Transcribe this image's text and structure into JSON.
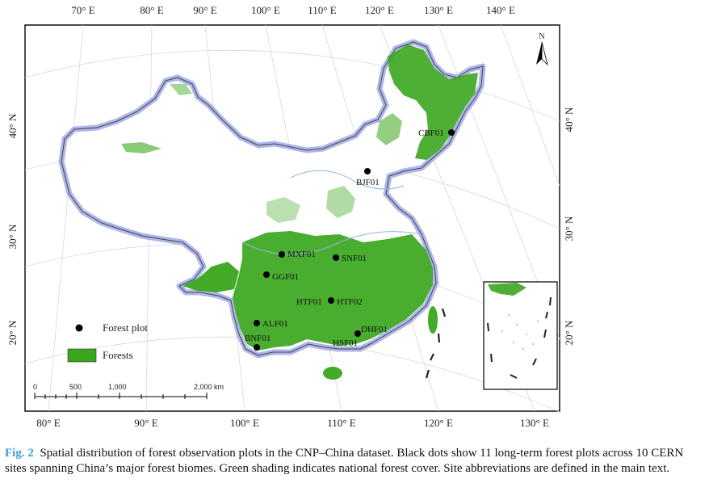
{
  "map": {
    "top_lon_labels": [
      "70° E",
      "80° E",
      "90° E",
      "100° E",
      "110° E",
      "120° E",
      "130° E",
      "140° E"
    ],
    "bottom_lon_labels": [
      "80° E",
      "90° E",
      "100° E",
      "110° E",
      "120° E",
      "130° E"
    ],
    "left_lat_labels": [
      "40° N",
      "30° N",
      "20° N"
    ],
    "right_lat_labels": [
      "40° N",
      "30° N",
      "20° N"
    ],
    "north_label": "N",
    "colors": {
      "forest": "#3aa61e",
      "border_glow": "#9aa4e6",
      "coast": "#8fb6e0",
      "frame": "#000000"
    },
    "sites": [
      {
        "id": "CBF01"
      },
      {
        "id": "BJF01"
      },
      {
        "id": "MXF01"
      },
      {
        "id": "SNF01"
      },
      {
        "id": "GGF01"
      },
      {
        "id": "HTF01"
      },
      {
        "id": "HTF02"
      },
      {
        "id": "ALF01"
      },
      {
        "id": "BNF01"
      },
      {
        "id": "DHF01"
      },
      {
        "id": "HSF01"
      }
    ]
  },
  "legend": {
    "plot_label": "Forest plot",
    "forest_label": "Forests"
  },
  "scalebar": {
    "ticks": [
      "0",
      "500",
      "1,000",
      "2,000 km"
    ]
  },
  "caption": {
    "fig_no": "Fig. 2",
    "text": "Spatial distribution of forest observation plots in the CNP–China dataset. Black dots show 11 long-term forest plots across 10 CERN sites spanning China’s major forest biomes. Green shading indicates national forest cover. Site abbreviations are defined in the main text."
  }
}
